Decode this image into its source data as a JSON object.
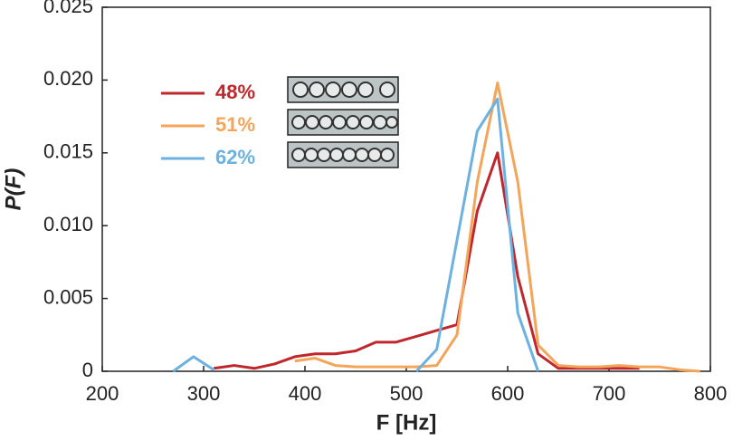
{
  "chart_data": {
    "type": "line",
    "xlabel": "F [Hz]",
    "ylabel": "P(F)",
    "xlim": [
      200,
      800
    ],
    "xticks": [
      200,
      300,
      400,
      500,
      600,
      700,
      800
    ],
    "ylim": [
      0,
      0.025
    ],
    "yticks": [
      0,
      0.005,
      {
        "value": 0.01,
        "label": "0.010"
      },
      0.015,
      {
        "value": 0.02,
        "label": "0.020"
      },
      0.025
    ],
    "series": [
      {
        "name": "48%",
        "color": "#c0272d",
        "x": [
          310,
          330,
          350,
          370,
          390,
          410,
          430,
          450,
          470,
          490,
          510,
          530,
          550,
          570,
          590,
          610,
          630,
          650,
          670,
          690,
          710,
          730
        ],
        "values": [
          0.0002,
          0.0004,
          0.0002,
          0.0005,
          0.001,
          0.0012,
          0.0012,
          0.0014,
          0.002,
          0.002,
          0.0024,
          0.0028,
          0.0032,
          0.011,
          0.015,
          0.0065,
          0.0012,
          0.0002,
          0.0002,
          0.0002,
          0.0002,
          0.0002
        ]
      },
      {
        "name": "51%",
        "color": "#f5a55a",
        "x": [
          390,
          410,
          430,
          450,
          470,
          490,
          510,
          530,
          550,
          570,
          590,
          610,
          630,
          650,
          670,
          690,
          710,
          730,
          750,
          770,
          790
        ],
        "values": [
          0.0007,
          0.0009,
          0.0004,
          0.0003,
          0.0003,
          0.0003,
          0.0003,
          0.0004,
          0.0025,
          0.013,
          0.0198,
          0.013,
          0.0018,
          0.0004,
          0.0003,
          0.0003,
          0.0004,
          0.0003,
          0.0003,
          0.0001,
          0
        ]
      },
      {
        "name": "62%",
        "color": "#6bb1e1",
        "x": [
          270,
          290,
          310,
          410,
          510,
          530,
          550,
          570,
          590,
          610,
          630
        ],
        "values": [
          0,
          0.001,
          0.0001,
          null,
          0,
          0.0015,
          0.009,
          0.0165,
          0.0187,
          0.004,
          0
        ]
      }
    ]
  }
}
